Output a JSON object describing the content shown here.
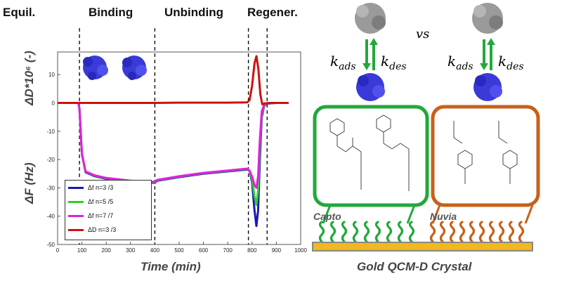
{
  "phases": {
    "equil": "Equil.",
    "binding": "Binding",
    "unbinding": "Unbinding",
    "regener": "Regener."
  },
  "axes": {
    "y_top_label": "ΔD*10⁶ (-)",
    "y_bottom_label": "ΔF (Hz)",
    "x_label": "Time (min)"
  },
  "legend": [
    {
      "label": "Δf n=3 /3",
      "color": "#1a1ab0"
    },
    {
      "label": "Δf n=5 /5",
      "color": "#33cc33"
    },
    {
      "label": "Δf n=7 /7",
      "color": "#e020e0"
    },
    {
      "label": "ΔD n=3 /3",
      "color": "#cc1111"
    }
  ],
  "diagram": {
    "vs_text": "vs",
    "k_ads": "k",
    "k_ads_sub": "ads",
    "k_des": "k",
    "k_des_sub": "des",
    "capto_label": "Capto",
    "nuvia_label": "Nuvia",
    "crystal_label": "Gold QCM-D Crystal",
    "colors": {
      "capto": "#22a83a",
      "nuvia": "#c8601a",
      "gold": "#f2b81c",
      "protein": "#3a3ad8"
    }
  },
  "chart_data": {
    "type": "line",
    "x": {
      "label": "Time (min)",
      "range": [
        0,
        1000
      ],
      "ticks": [
        0,
        100,
        200,
        300,
        400,
        500,
        600,
        700,
        800,
        900,
        1000
      ]
    },
    "y": {
      "label": "ΔF (Hz)",
      "range": [
        -50,
        18
      ],
      "ticks": [
        -50,
        -40,
        -30,
        -20,
        -10,
        0,
        10
      ],
      "secondary_label": "ΔD*10⁶ (-)"
    },
    "phase_boundaries": [
      90,
      400,
      785,
      862
    ],
    "series": [
      {
        "name": "Δf n=3 /3",
        "color": "#1a1ab0",
        "points": [
          [
            0,
            0
          ],
          [
            85,
            0
          ],
          [
            90,
            -2
          ],
          [
            100,
            -18
          ],
          [
            115,
            -24.5
          ],
          [
            150,
            -25.8
          ],
          [
            200,
            -26.8
          ],
          [
            300,
            -27.8
          ],
          [
            400,
            -28.2
          ],
          [
            410,
            -27.5
          ],
          [
            500,
            -26.2
          ],
          [
            600,
            -25.0
          ],
          [
            700,
            -24.2
          ],
          [
            770,
            -23.6
          ],
          [
            780,
            -23.5
          ],
          [
            790,
            -24
          ],
          [
            800,
            -28
          ],
          [
            810,
            -38
          ],
          [
            818,
            -43.5
          ],
          [
            825,
            -38
          ],
          [
            832,
            -20
          ],
          [
            840,
            -5
          ],
          [
            850,
            -1
          ],
          [
            860,
            -0.3
          ],
          [
            900,
            0
          ],
          [
            950,
            0
          ]
        ]
      },
      {
        "name": "Δf n=5 /5",
        "color": "#33cc33",
        "points": [
          [
            0,
            0
          ],
          [
            85,
            0
          ],
          [
            90,
            -2
          ],
          [
            100,
            -18
          ],
          [
            115,
            -24.3
          ],
          [
            150,
            -25.6
          ],
          [
            200,
            -26.6
          ],
          [
            300,
            -27.6
          ],
          [
            400,
            -28.0
          ],
          [
            410,
            -27.3
          ],
          [
            500,
            -26.0
          ],
          [
            600,
            -24.8
          ],
          [
            700,
            -24.0
          ],
          [
            770,
            -23.4
          ],
          [
            780,
            -23.3
          ],
          [
            790,
            -24
          ],
          [
            800,
            -27
          ],
          [
            810,
            -33
          ],
          [
            818,
            -36
          ],
          [
            825,
            -31
          ],
          [
            832,
            -16
          ],
          [
            840,
            -4
          ],
          [
            850,
            -0.8
          ],
          [
            860,
            -0.2
          ],
          [
            900,
            0
          ],
          [
            950,
            0
          ]
        ]
      },
      {
        "name": "Δf n=7 /7",
        "color": "#e020e0",
        "points": [
          [
            0,
            0
          ],
          [
            85,
            0
          ],
          [
            90,
            -2
          ],
          [
            100,
            -18
          ],
          [
            115,
            -24.2
          ],
          [
            150,
            -25.5
          ],
          [
            200,
            -26.5
          ],
          [
            300,
            -27.5
          ],
          [
            400,
            -27.9
          ],
          [
            410,
            -27.2
          ],
          [
            500,
            -25.9
          ],
          [
            600,
            -24.7
          ],
          [
            700,
            -23.9
          ],
          [
            770,
            -23.3
          ],
          [
            780,
            -23.2
          ],
          [
            790,
            -24
          ],
          [
            800,
            -26
          ],
          [
            810,
            -29
          ],
          [
            818,
            -30
          ],
          [
            825,
            -26
          ],
          [
            832,
            -13
          ],
          [
            840,
            -3
          ],
          [
            850,
            -0.6
          ],
          [
            860,
            -0.1
          ],
          [
            900,
            0
          ],
          [
            950,
            0
          ]
        ]
      },
      {
        "name": "ΔD n=3 /3",
        "color": "#cc1111",
        "points": [
          [
            0,
            0
          ],
          [
            100,
            0
          ],
          [
            200,
            0
          ],
          [
            300,
            0
          ],
          [
            400,
            0
          ],
          [
            500,
            0.1
          ],
          [
            600,
            0.1
          ],
          [
            700,
            0.1
          ],
          [
            780,
            0.2
          ],
          [
            790,
            1
          ],
          [
            800,
            6
          ],
          [
            810,
            14
          ],
          [
            818,
            16.5
          ],
          [
            826,
            12
          ],
          [
            834,
            3
          ],
          [
            842,
            -0.5
          ],
          [
            850,
            -0.2
          ],
          [
            870,
            0
          ],
          [
            950,
            0
          ]
        ]
      }
    ]
  }
}
